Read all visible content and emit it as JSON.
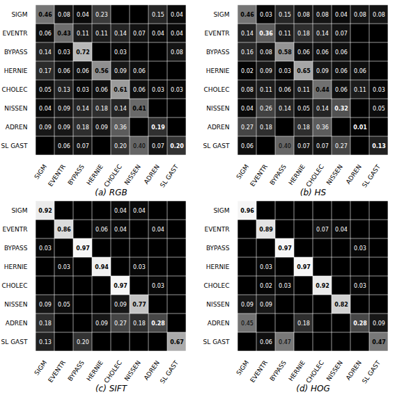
{
  "chart_data": [
    {
      "type": "heatmap",
      "xlabel": "(a) RGB",
      "categories": [
        "SIGM",
        "EVENTR",
        "BYPASS",
        "HERNIE",
        "CHOLEC",
        "NISSEN",
        "ADREN",
        "SL GAST"
      ],
      "cells": [
        [
          0.46,
          0.08,
          0.04,
          0.23,
          0.0,
          0.0,
          0.15,
          0.04
        ],
        [
          0.06,
          0.43,
          0.11,
          0.11,
          0.14,
          0.07,
          0.04,
          0.04
        ],
        [
          0.14,
          0.03,
          0.72,
          0.0,
          0.03,
          0.0,
          0.0,
          0.08
        ],
        [
          0.17,
          0.06,
          0.06,
          0.56,
          0.09,
          0.06,
          0.0,
          0.0
        ],
        [
          0.05,
          0.13,
          0.03,
          0.06,
          0.61,
          0.06,
          0.03,
          0.03
        ],
        [
          0.04,
          0.09,
          0.14,
          0.18,
          0.14,
          0.41,
          0.0,
          0.0
        ],
        [
          0.09,
          0.09,
          0.18,
          0.09,
          0.36,
          0.0,
          0.19,
          0.0
        ],
        [
          0.0,
          0.06,
          0.07,
          0.0,
          0.2,
          0.4,
          0.07,
          0.2
        ]
      ],
      "value_labels": [
        [
          "0.46",
          "0.08",
          "0.04",
          "0.23",
          null,
          null,
          "0.15",
          "0.04"
        ],
        [
          "0.06",
          "0.43",
          "0.11",
          "0.11",
          "0.14",
          "0.07",
          "0.04",
          "0.04"
        ],
        [
          "0.14",
          "0.03",
          "0.72",
          null,
          "0.03",
          null,
          null,
          "0.08"
        ],
        [
          "0.17",
          "0.06",
          "0.06",
          "0.56",
          "0.09",
          "0.06",
          null,
          null
        ],
        [
          "0.05",
          "0.13",
          "0.03",
          "0.06",
          "0.61",
          "0.06",
          "0.03",
          "0.03"
        ],
        [
          "0.04",
          "0.09",
          "0.14",
          "0.18",
          "0.14",
          "0.41",
          null,
          null
        ],
        [
          "0.09",
          "0.09",
          "0.18",
          "0.09",
          "0.36",
          null,
          "0.19",
          null
        ],
        [
          null,
          "0.06",
          "0.07",
          null,
          "0.20",
          "0.40",
          "0.07",
          "0.20"
        ]
      ],
      "color_range": [
        0.0,
        1.0
      ],
      "color": "gray",
      "data_labels": true
    },
    {
      "type": "heatmap",
      "xlabel": "(b) HS",
      "categories": [
        "SIGM",
        "EVENTR",
        "BYPASS",
        "HERNIE",
        "CHOLEC",
        "NISSEN",
        "ADREN",
        "SL GAST"
      ],
      "cells": [
        [
          0.46,
          0.03,
          0.15,
          0.08,
          0.08,
          0.04,
          0.08,
          0.08
        ],
        [
          0.14,
          0.36,
          0.11,
          0.18,
          0.14,
          0.07,
          0.0,
          0.0
        ],
        [
          0.16,
          0.08,
          0.58,
          0.06,
          0.06,
          0.06,
          0.0,
          0.0
        ],
        [
          0.02,
          0.09,
          0.03,
          0.65,
          0.09,
          0.06,
          0.06,
          0.0
        ],
        [
          0.08,
          0.11,
          0.06,
          0.11,
          0.44,
          0.06,
          0.11,
          0.03
        ],
        [
          0.04,
          0.26,
          0.14,
          0.05,
          0.14,
          0.32,
          0.0,
          0.05
        ],
        [
          0.27,
          0.18,
          0.0,
          0.18,
          0.36,
          0.0,
          0.01,
          0.0
        ],
        [
          0.06,
          0.0,
          0.4,
          0.07,
          0.07,
          0.27,
          0.0,
          0.13
        ]
      ],
      "value_labels": [
        [
          "0.46",
          "0.03",
          "0.15",
          "0.08",
          "0.08",
          "0.04",
          "0.08",
          "0.08"
        ],
        [
          "0.14",
          "0.36",
          "0.11",
          "0.18",
          "0.14",
          "0.07",
          null,
          null
        ],
        [
          "0.16",
          "0.08",
          "0.58",
          "0.06",
          "0.06",
          "0.06",
          null,
          null
        ],
        [
          "0.02",
          "0.09",
          "0.03",
          "0.65",
          "0.09",
          "0.06",
          "0.06",
          null
        ],
        [
          "0.08",
          "0.11",
          "0.06",
          "0.11",
          "0.44",
          "0.06",
          "0.11",
          "0.03"
        ],
        [
          "0.04",
          "0.26",
          "0.14",
          "0.05",
          "0.14",
          "0.32",
          null,
          "0.05"
        ],
        [
          "0.27",
          "0.18",
          null,
          "0.18",
          "0.36",
          null,
          "0.01",
          null
        ],
        [
          "0.06",
          null,
          "0.40",
          "0.07",
          "0.07",
          "0.27",
          null,
          "0.13"
        ]
      ],
      "color_range": [
        0.0,
        1.0
      ],
      "color": "gray",
      "data_labels": true
    },
    {
      "type": "heatmap",
      "xlabel": "(c) SIFT",
      "categories": [
        "SIGM",
        "EVENTR",
        "BYPASS",
        "HERNIE",
        "CHOLEC",
        "NISSEN",
        "ADREN",
        "SL GAST"
      ],
      "cells": [
        [
          0.92,
          0.0,
          0.0,
          0.0,
          0.04,
          0.04,
          0.0,
          0.0
        ],
        [
          0.0,
          0.86,
          0.0,
          0.06,
          0.04,
          0.0,
          0.04,
          0.0
        ],
        [
          0.03,
          0.0,
          0.97,
          0.0,
          0.0,
          0.0,
          0.0,
          0.0
        ],
        [
          0.0,
          0.03,
          0.0,
          0.94,
          0.0,
          0.03,
          0.0,
          0.0
        ],
        [
          0.0,
          0.0,
          0.0,
          0.0,
          0.97,
          0.0,
          0.03,
          0.0
        ],
        [
          0.09,
          0.05,
          0.0,
          0.0,
          0.09,
          0.77,
          0.0,
          0.0
        ],
        [
          0.18,
          0.0,
          0.0,
          0.09,
          0.27,
          0.18,
          0.28,
          0.0
        ],
        [
          0.13,
          0.0,
          0.2,
          0.0,
          0.0,
          0.0,
          0.0,
          0.67
        ]
      ],
      "value_labels": [
        [
          "0.92",
          null,
          null,
          null,
          "0.04",
          "0.04",
          null,
          null
        ],
        [
          null,
          "0.86",
          null,
          "0.06",
          "0.04",
          null,
          "0.04",
          null
        ],
        [
          "0.03",
          null,
          "0.97",
          null,
          null,
          null,
          null,
          null
        ],
        [
          null,
          "0.03",
          null,
          "0.94",
          null,
          "0.03",
          null,
          null
        ],
        [
          null,
          null,
          null,
          null,
          "0.97",
          null,
          "0.03",
          null
        ],
        [
          "0.09",
          "0.05",
          null,
          null,
          "0.09",
          "0.77",
          null,
          null
        ],
        [
          "0.18",
          null,
          null,
          "0.09",
          "0.27",
          "0.18",
          "0.28",
          null
        ],
        [
          "0.13",
          null,
          "0.20",
          null,
          null,
          null,
          null,
          "0.67"
        ]
      ],
      "color_range": [
        0.0,
        1.0
      ],
      "color": "gray",
      "data_labels": true
    },
    {
      "type": "heatmap",
      "xlabel": "(d) HOG",
      "categories": [
        "SIGM",
        "EVENTR",
        "BYPASS",
        "HERNIE",
        "CHOLEC",
        "NISSEN",
        "ADREN",
        "SL GAST"
      ],
      "cells": [
        [
          0.96,
          0.0,
          0.0,
          0.0,
          0.0,
          0.0,
          0.0,
          0.0
        ],
        [
          0.0,
          0.89,
          0.0,
          0.0,
          0.07,
          0.04,
          0.0,
          0.0
        ],
        [
          0.0,
          0.0,
          0.97,
          0.0,
          0.0,
          0.0,
          0.03,
          0.0
        ],
        [
          0.0,
          0.03,
          0.0,
          0.97,
          0.0,
          0.0,
          0.0,
          0.0
        ],
        [
          0.0,
          0.02,
          0.03,
          0.0,
          0.92,
          0.0,
          0.03,
          0.0
        ],
        [
          0.09,
          0.09,
          0.0,
          0.0,
          0.0,
          0.82,
          0.0,
          0.0
        ],
        [
          0.45,
          0.0,
          0.0,
          0.18,
          0.0,
          0.0,
          0.28,
          0.09
        ],
        [
          0.0,
          0.06,
          0.47,
          0.0,
          0.0,
          0.0,
          0.0,
          0.47
        ]
      ],
      "value_labels": [
        [
          "0.96",
          null,
          null,
          null,
          null,
          null,
          null,
          null
        ],
        [
          null,
          "0.89",
          null,
          null,
          "0.07",
          "0.04",
          null,
          null
        ],
        [
          null,
          null,
          "0.97",
          null,
          null,
          null,
          "0.03",
          null
        ],
        [
          null,
          "0.03",
          null,
          "0.97",
          null,
          null,
          null,
          null
        ],
        [
          null,
          "0.02",
          "0.03",
          null,
          "0.92",
          null,
          "0.03",
          null
        ],
        [
          "0.09",
          "0.09",
          null,
          null,
          null,
          "0.82",
          null,
          null
        ],
        [
          "0.45",
          null,
          null,
          "0.18",
          null,
          null,
          "0.28",
          "0.09"
        ],
        [
          null,
          "0.06",
          "0.47",
          null,
          null,
          null,
          null,
          "0.47"
        ]
      ],
      "color_range": [
        0.0,
        1.0
      ],
      "color": "gray",
      "data_labels": true
    }
  ]
}
